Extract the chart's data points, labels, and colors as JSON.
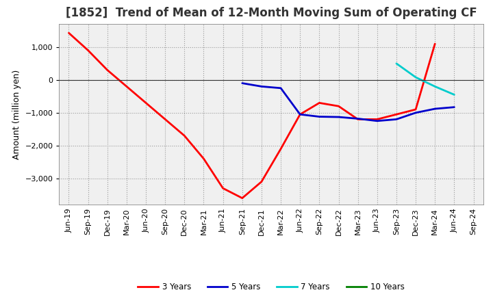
{
  "title": "[1852]  Trend of Mean of 12-Month Moving Sum of Operating CF",
  "ylabel": "Amount (million yen)",
  "background_color": "#ffffff",
  "plot_bg_color": "#f0f0f0",
  "grid_color": "#999999",
  "x_labels": [
    "Jun-19",
    "Sep-19",
    "Dec-19",
    "Mar-20",
    "Jun-20",
    "Sep-20",
    "Dec-20",
    "Mar-21",
    "Jun-21",
    "Sep-21",
    "Dec-21",
    "Mar-22",
    "Jun-22",
    "Sep-22",
    "Dec-22",
    "Mar-23",
    "Jun-23",
    "Sep-23",
    "Dec-23",
    "Mar-24",
    "Jun-24",
    "Sep-24"
  ],
  "ylim": [
    -3800,
    1700
  ],
  "yticks": [
    -3000,
    -2000,
    -1000,
    0,
    1000
  ],
  "series": {
    "3yr": {
      "color": "#ff0000",
      "label": "3 Years",
      "x": [
        0,
        1,
        2,
        3,
        4,
        5,
        6,
        7,
        8,
        9,
        10,
        11,
        12,
        13,
        14,
        15,
        16,
        17,
        18,
        19
      ],
      "y": [
        1430,
        900,
        300,
        -200,
        -700,
        -1200,
        -1700,
        -2400,
        -3300,
        -3600,
        -3100,
        -2100,
        -1050,
        -700,
        -800,
        -1200,
        -1200,
        -1050,
        -900,
        1100
      ]
    },
    "5yr": {
      "color": "#0000cc",
      "label": "5 Years",
      "x": [
        9,
        10,
        11,
        12,
        13,
        14,
        15,
        16,
        17,
        18,
        19,
        20
      ],
      "y": [
        -100,
        -200,
        -250,
        -1050,
        -1120,
        -1130,
        -1180,
        -1250,
        -1200,
        -1000,
        -880,
        -830
      ]
    },
    "7yr": {
      "color": "#00cccc",
      "label": "7 Years",
      "x": [
        17,
        18,
        19,
        20
      ],
      "y": [
        500,
        80,
        -200,
        -450
      ]
    },
    "10yr": {
      "color": "#008000",
      "label": "10 Years",
      "x": [],
      "y": []
    }
  },
  "title_fontsize": 12,
  "axis_label_fontsize": 9,
  "tick_fontsize": 8
}
